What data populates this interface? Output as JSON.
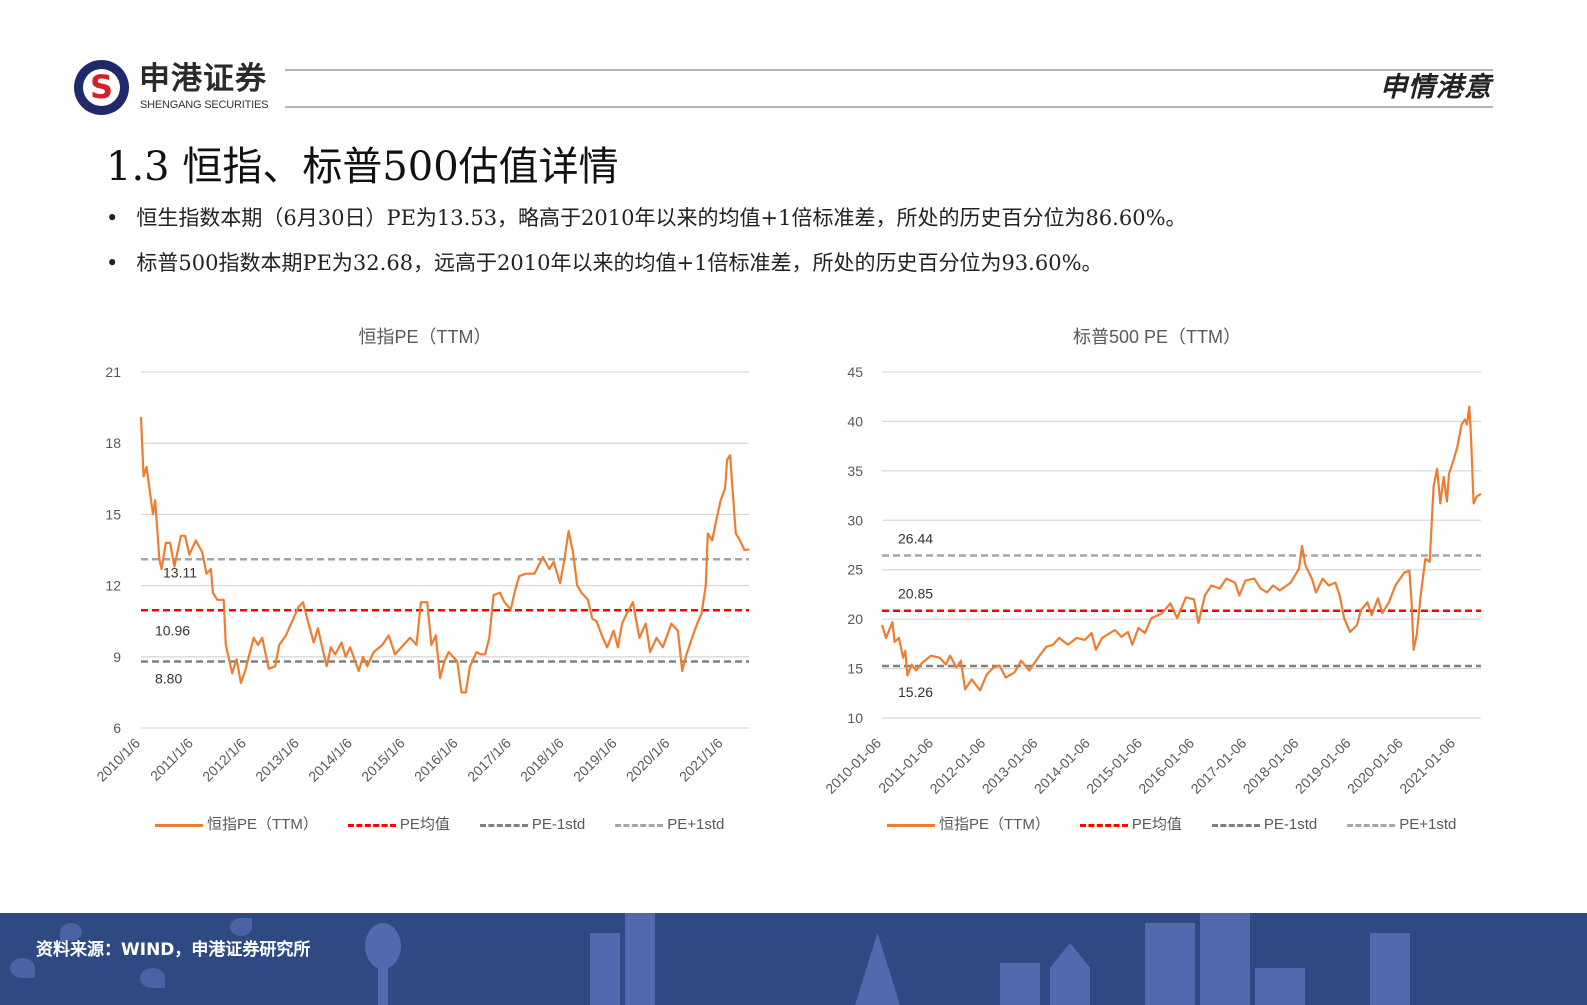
{
  "header": {
    "brand_cn": "申港证券",
    "brand_en": "SHENGANG SECURITIES",
    "logo_letter": "S",
    "slogan": "申情港意"
  },
  "title": "1.3 恒指、标普500估值详情",
  "bullets": [
    "恒生指数本期（6月30日）PE为13.53，略高于2010年以来的均值+1倍标准差，所处的历史百分位为86.60%。",
    "标普500指数本期PE为32.68，远高于2010年以来的均值+1倍标准差，所处的历史百分位为93.60%。"
  ],
  "footer": {
    "source": "资料来源：WIND，申港证券研究所"
  },
  "colors": {
    "series": "#ED7D31",
    "mean": "#FF0000",
    "minus_std": "#808080",
    "plus_std": "#A6A6A6",
    "footer_bg": "#2F4A82",
    "logo": "#1F2A6B"
  },
  "chart_data": [
    {
      "type": "line",
      "title": "恒指PE（TTM）",
      "ylim": [
        6,
        21
      ],
      "yticks": [
        "6",
        "9",
        "12",
        "15",
        "18",
        "21"
      ],
      "xlim": [
        "2010-01-06",
        "2021-06-30"
      ],
      "xticks": [
        "2010/1/6",
        "2011/1/6",
        "2012/1/6",
        "2013/1/6",
        "2014/1/6",
        "2015/1/6",
        "2016/1/6",
        "2017/1/6",
        "2018/1/6",
        "2019/1/6",
        "2020/1/6",
        "2021/1/6"
      ],
      "grid": true,
      "legend": "bottom",
      "legend_labels": [
        "恒指PE（TTM）",
        "PE均值",
        "PE-1std",
        "PE+1std"
      ],
      "reference_lines": {
        "mean": 10.96,
        "minus_std": 8.8,
        "plus_std": 13.11
      },
      "reference_labels": {
        "mean": "10.96",
        "minus_std": "8.80",
        "plus_std": "13.11"
      },
      "series": [
        {
          "name": "恒指PE（TTM）",
          "x": [
            "2010-01-06",
            "2010-01-24",
            "2010-02-13",
            "2010-03-30",
            "2010-04-14",
            "2010-05-13",
            "2010-05-28",
            "2010-06-26",
            "2010-07-26",
            "2010-08-24",
            "2010-10-08",
            "2010-11-06",
            "2010-12-06",
            "2011-01-19",
            "2011-03-05",
            "2011-04-03",
            "2011-05-03",
            "2011-05-17",
            "2011-06-16",
            "2011-07-30",
            "2011-08-14",
            "2011-09-27",
            "2011-10-27",
            "2011-11-26",
            "2011-12-25",
            "2012-02-22",
            "2012-03-23",
            "2012-04-21",
            "2012-06-05",
            "2012-07-19",
            "2012-08-17",
            "2012-10-01",
            "2012-10-30",
            "2012-12-28",
            "2013-01-27",
            "2013-02-26",
            "2013-04-11",
            "2013-05-10",
            "2013-07-09",
            "2013-08-07",
            "2013-09-06",
            "2013-10-20",
            "2013-11-18",
            "2013-12-18",
            "2014-02-15",
            "2014-03-17",
            "2014-04-15",
            "2014-05-30",
            "2014-07-28",
            "2014-09-10",
            "2014-10-24",
            "2014-12-22",
            "2015-02-05",
            "2015-03-21",
            "2015-04-20",
            "2015-06-03",
            "2015-07-02",
            "2015-08-01",
            "2015-08-31",
            "2015-09-29",
            "2015-10-29",
            "2015-12-27",
            "2016-01-25",
            "2016-02-24",
            "2016-03-24",
            "2016-05-08",
            "2016-06-06",
            "2016-07-06",
            "2016-08-04",
            "2016-09-03",
            "2016-10-17",
            "2016-11-16",
            "2016-12-30",
            "2017-01-29",
            "2017-02-27",
            "2017-04-13",
            "2017-06-11",
            "2017-08-09",
            "2017-09-22",
            "2017-10-22",
            "2017-12-05",
            "2018-01-04",
            "2018-02-02",
            "2018-03-04",
            "2018-04-02",
            "2018-05-02",
            "2018-06-15",
            "2018-07-15",
            "2018-08-13",
            "2018-09-26",
            "2018-10-26",
            "2018-12-09",
            "2019-01-08",
            "2019-02-06",
            "2019-03-08",
            "2019-04-21",
            "2019-06-05",
            "2019-07-19",
            "2019-08-18",
            "2019-10-01",
            "2019-11-14",
            "2020-01-12",
            "2020-02-26",
            "2020-03-26",
            "2020-04-25",
            "2020-06-08",
            "2020-07-08",
            "2020-08-06",
            "2020-09-05",
            "2020-09-19",
            "2020-10-19",
            "2020-11-18",
            "2020-12-17",
            "2021-01-16",
            "2021-01-30",
            "2021-02-20",
            "2021-03-10",
            "2021-03-31",
            "2021-04-29",
            "2021-05-29",
            "2021-06-30"
          ],
          "y": [
            19.1,
            16.6,
            17.0,
            15.0,
            15.6,
            13.1,
            12.7,
            13.8,
            13.8,
            12.8,
            14.1,
            14.1,
            13.3,
            13.9,
            13.4,
            12.5,
            12.7,
            11.7,
            11.4,
            11.4,
            9.5,
            8.3,
            8.9,
            7.9,
            8.4,
            9.8,
            9.5,
            9.8,
            8.5,
            8.6,
            9.5,
            9.9,
            10.3,
            11.1,
            11.3,
            10.6,
            9.6,
            10.2,
            8.6,
            9.4,
            9.1,
            9.6,
            9.0,
            9.4,
            8.4,
            9.0,
            8.6,
            9.2,
            9.5,
            9.9,
            9.1,
            9.5,
            9.8,
            9.5,
            11.3,
            11.3,
            9.5,
            9.9,
            8.1,
            8.8,
            9.2,
            8.8,
            7.5,
            7.5,
            8.6,
            9.2,
            9.1,
            9.1,
            9.8,
            11.6,
            11.7,
            11.3,
            11.0,
            11.8,
            12.4,
            12.5,
            12.5,
            13.2,
            12.7,
            13.0,
            12.1,
            13.1,
            14.3,
            13.4,
            12.0,
            11.7,
            11.4,
            10.6,
            10.5,
            9.8,
            9.4,
            10.1,
            9.4,
            10.4,
            10.8,
            11.3,
            9.8,
            10.4,
            9.2,
            9.8,
            9.4,
            10.4,
            10.1,
            8.4,
            9.1,
            9.9,
            10.4,
            10.8,
            12.0,
            14.2,
            13.9,
            14.8,
            15.6,
            16.1,
            17.3,
            17.5,
            15.9,
            14.2,
            13.9,
            13.5,
            13.53
          ]
        }
      ]
    },
    {
      "type": "line",
      "title": "标普500 PE（TTM）",
      "ylim": [
        10,
        45
      ],
      "yticks": [
        "10",
        "15",
        "20",
        "25",
        "30",
        "35",
        "40",
        "45"
      ],
      "xlim": [
        "2010-01-06",
        "2021-06-30"
      ],
      "xticks": [
        "2010-01-06",
        "2011-01-06",
        "2012-01-06",
        "2013-01-06",
        "2014-01-06",
        "2015-01-06",
        "2016-01-06",
        "2017-01-06",
        "2018-01-06",
        "2019-01-06",
        "2020-01-06",
        "2021-01-06"
      ],
      "grid": true,
      "legend": "bottom",
      "legend_labels": [
        "恒指PE（TTM）",
        "PE均值",
        "PE-1std",
        "PE+1std"
      ],
      "reference_lines": {
        "mean": 20.85,
        "minus_std": 15.26,
        "plus_std": 26.44
      },
      "reference_labels": {
        "mean": "20.85",
        "minus_std": "15.26",
        "plus_std": "26.44"
      },
      "series": [
        {
          "name": "恒指PE（TTM）",
          "x": [
            "2010-01-06",
            "2010-02-04",
            "2010-03-20",
            "2010-04-04",
            "2010-05-04",
            "2010-06-03",
            "2010-06-18",
            "2010-07-03",
            "2010-08-02",
            "2010-09-01",
            "2010-10-16",
            "2010-12-15",
            "2011-02-14",
            "2011-03-29",
            "2011-04-27",
            "2011-06-12",
            "2011-07-12",
            "2011-08-11",
            "2011-09-26",
            "2011-11-24",
            "2012-01-09",
            "2012-02-24",
            "2012-04-08",
            "2012-05-21",
            "2012-07-21",
            "2012-09-06",
            "2012-11-02",
            "2013-01-02",
            "2013-03-01",
            "2013-04-17",
            "2013-05-30",
            "2013-07-30",
            "2013-09-29",
            "2013-11-26",
            "2014-01-12",
            "2014-02-11",
            "2014-03-27",
            "2014-06-24",
            "2014-08-09",
            "2014-09-24",
            "2014-10-24",
            "2014-12-06",
            "2015-01-21",
            "2015-03-06",
            "2015-05-21",
            "2015-07-18",
            "2015-09-03",
            "2015-11-03",
            "2015-12-30",
            "2016-01-30",
            "2016-03-15",
            "2016-04-30",
            "2016-06-27",
            "2016-08-12",
            "2016-10-12",
            "2016-11-11",
            "2016-12-24",
            "2017-02-24",
            "2017-04-09",
            "2017-05-24",
            "2017-07-06",
            "2017-08-21",
            "2017-11-06",
            "2018-01-03",
            "2018-01-24",
            "2018-02-18",
            "2018-04-03",
            "2018-05-03",
            "2018-06-18",
            "2018-07-30",
            "2018-09-15",
            "2018-10-15",
            "2018-11-15",
            "2018-12-27",
            "2019-02-12",
            "2019-03-12",
            "2019-04-27",
            "2019-05-27",
            "2019-07-09",
            "2019-08-09",
            "2019-09-24",
            "2019-11-09",
            "2020-01-09",
            "2020-02-15",
            "2020-03-01",
            "2020-03-15",
            "2020-04-06",
            "2020-05-06",
            "2020-06-06",
            "2020-07-06",
            "2020-08-02",
            "2020-08-27",
            "2020-09-18",
            "2020-10-12",
            "2020-11-03",
            "2020-11-18",
            "2020-12-18",
            "2021-01-15",
            "2021-02-14",
            "2021-03-09",
            "2021-03-24",
            "2021-04-09",
            "2021-04-21",
            "2021-05-09",
            "2021-05-30",
            "2021-06-30"
          ],
          "y": [
            19.4,
            18.1,
            19.7,
            17.7,
            18.1,
            16.1,
            16.8,
            14.3,
            15.4,
            14.8,
            15.6,
            16.3,
            16.1,
            15.4,
            16.3,
            15.1,
            15.8,
            12.9,
            13.9,
            12.8,
            14.4,
            15.1,
            15.3,
            14.1,
            14.6,
            15.8,
            14.8,
            16.1,
            17.2,
            17.4,
            18.1,
            17.4,
            18.1,
            17.9,
            18.6,
            16.9,
            18.1,
            18.9,
            18.2,
            18.7,
            17.4,
            19.1,
            18.6,
            20.1,
            20.6,
            21.6,
            20.1,
            22.2,
            22.0,
            19.6,
            22.4,
            23.4,
            23.1,
            24.1,
            23.7,
            22.4,
            23.9,
            24.1,
            23.1,
            22.7,
            23.4,
            22.9,
            23.7,
            25.1,
            27.4,
            25.4,
            24.1,
            22.7,
            24.1,
            23.4,
            23.7,
            22.4,
            20.1,
            18.7,
            19.4,
            20.9,
            21.7,
            20.4,
            22.1,
            20.6,
            21.7,
            23.4,
            24.7,
            24.9,
            21.7,
            16.9,
            18.4,
            22.7,
            26.1,
            25.8,
            33.4,
            35.2,
            31.7,
            34.4,
            31.9,
            34.7,
            36.0,
            37.4,
            39.7,
            40.2,
            39.7,
            41.5,
            38.4,
            31.7,
            32.4,
            32.68
          ]
        }
      ]
    }
  ]
}
